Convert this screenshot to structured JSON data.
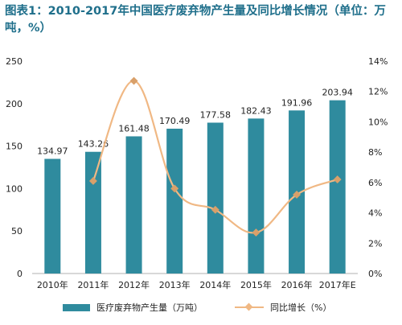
{
  "chart_data": {
    "type": "bar+line",
    "title": "图表1：2010-2017年中国医疗废弃物产生量及同比增长情况（单位：万吨，%）",
    "categories": [
      "2010年",
      "2011年",
      "2012年",
      "2013年",
      "2014年",
      "2015年",
      "2016年",
      "2017年E"
    ],
    "series": [
      {
        "name": "医疗废弃物产生量（万吨）",
        "type": "bar",
        "axis": "left",
        "color": "#2f8b9e",
        "values": [
          134.97,
          143.26,
          161.48,
          170.49,
          177.58,
          182.43,
          191.96,
          203.94
        ],
        "labels": [
          "134.97",
          "143.26",
          "161.48",
          "170.49",
          "177.58",
          "182.43",
          "191.96",
          "203.94"
        ]
      },
      {
        "name": "同比增长（%）",
        "type": "line",
        "axis": "right",
        "color": "#f0b884",
        "values": [
          null,
          6.1,
          12.7,
          5.6,
          4.2,
          2.7,
          5.2,
          6.2
        ]
      }
    ],
    "y_left": {
      "min": 0,
      "max": 250,
      "ticks": [
        "0",
        "50",
        "100",
        "150",
        "200",
        "250"
      ]
    },
    "y_right": {
      "min": 0,
      "max": 14,
      "ticks": [
        "0%",
        "2%",
        "4%",
        "6%",
        "8%",
        "10%",
        "12%",
        "14%"
      ]
    },
    "grid": false,
    "legend": "bottom"
  }
}
